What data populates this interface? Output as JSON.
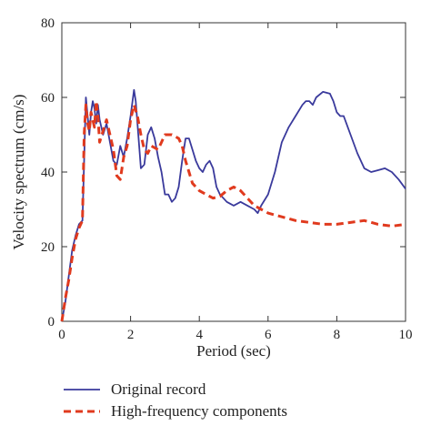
{
  "chart_data": {
    "type": "line",
    "title": "",
    "xlabel": "Period (sec)",
    "ylabel": "Velocity spectrum (cm/s)",
    "xlim": [
      0,
      10
    ],
    "ylim": [
      0,
      80
    ],
    "x_ticks": [
      0,
      2,
      4,
      6,
      8,
      10
    ],
    "y_ticks": [
      0,
      20,
      40,
      60,
      80
    ],
    "grid": false,
    "legend_position": "bottom-left-outside",
    "series": [
      {
        "name": "Original record",
        "color": "#3a3a9c",
        "style": "solid",
        "points": [
          [
            0,
            0
          ],
          [
            0.1,
            5
          ],
          [
            0.2,
            12
          ],
          [
            0.3,
            19
          ],
          [
            0.4,
            23
          ],
          [
            0.5,
            26
          ],
          [
            0.6,
            27
          ],
          [
            0.7,
            60
          ],
          [
            0.75,
            55
          ],
          [
            0.8,
            50
          ],
          [
            0.85,
            56
          ],
          [
            0.9,
            59
          ],
          [
            0.95,
            57
          ],
          [
            1.0,
            53
          ],
          [
            1.05,
            58
          ],
          [
            1.1,
            54
          ],
          [
            1.15,
            52
          ],
          [
            1.2,
            50
          ],
          [
            1.3,
            53
          ],
          [
            1.4,
            48
          ],
          [
            1.5,
            43
          ],
          [
            1.6,
            42
          ],
          [
            1.7,
            47
          ],
          [
            1.8,
            44
          ],
          [
            1.9,
            49
          ],
          [
            2.0,
            55
          ],
          [
            2.1,
            62
          ],
          [
            2.15,
            59
          ],
          [
            2.2,
            53
          ],
          [
            2.3,
            41
          ],
          [
            2.4,
            42
          ],
          [
            2.5,
            50
          ],
          [
            2.6,
            52
          ],
          [
            2.7,
            49
          ],
          [
            2.8,
            44
          ],
          [
            2.9,
            40
          ],
          [
            3.0,
            34
          ],
          [
            3.1,
            34
          ],
          [
            3.2,
            32
          ],
          [
            3.3,
            33
          ],
          [
            3.4,
            36
          ],
          [
            3.5,
            43
          ],
          [
            3.6,
            49
          ],
          [
            3.7,
            49
          ],
          [
            3.8,
            46
          ],
          [
            3.9,
            43
          ],
          [
            4.0,
            41
          ],
          [
            4.1,
            40
          ],
          [
            4.2,
            42
          ],
          [
            4.3,
            43
          ],
          [
            4.4,
            41
          ],
          [
            4.5,
            36
          ],
          [
            4.6,
            34
          ],
          [
            4.7,
            33
          ],
          [
            4.8,
            32
          ],
          [
            5.0,
            31
          ],
          [
            5.2,
            32
          ],
          [
            5.4,
            31
          ],
          [
            5.6,
            30
          ],
          [
            5.7,
            29
          ],
          [
            5.8,
            31
          ],
          [
            6.0,
            34
          ],
          [
            6.2,
            40
          ],
          [
            6.4,
            48
          ],
          [
            6.6,
            52
          ],
          [
            6.8,
            55
          ],
          [
            7.0,
            58
          ],
          [
            7.1,
            59
          ],
          [
            7.2,
            59
          ],
          [
            7.3,
            58
          ],
          [
            7.4,
            60
          ],
          [
            7.6,
            61.5
          ],
          [
            7.8,
            61
          ],
          [
            7.9,
            59
          ],
          [
            8.0,
            56
          ],
          [
            8.1,
            55
          ],
          [
            8.2,
            55
          ],
          [
            8.4,
            50
          ],
          [
            8.6,
            45
          ],
          [
            8.8,
            41
          ],
          [
            9.0,
            40
          ],
          [
            9.2,
            40.5
          ],
          [
            9.4,
            41
          ],
          [
            9.6,
            40
          ],
          [
            9.8,
            38
          ],
          [
            10.0,
            35.5
          ]
        ]
      },
      {
        "name": "High-frequency components",
        "color": "#e03a1e",
        "style": "dashed",
        "points": [
          [
            0,
            0
          ],
          [
            0.1,
            6
          ],
          [
            0.2,
            11
          ],
          [
            0.3,
            17
          ],
          [
            0.4,
            22
          ],
          [
            0.5,
            25
          ],
          [
            0.6,
            27
          ],
          [
            0.65,
            50
          ],
          [
            0.7,
            58
          ],
          [
            0.75,
            53
          ],
          [
            0.8,
            51
          ],
          [
            0.85,
            56
          ],
          [
            0.9,
            54
          ],
          [
            0.95,
            52
          ],
          [
            1.0,
            59
          ],
          [
            1.05,
            55
          ],
          [
            1.1,
            48
          ],
          [
            1.2,
            51
          ],
          [
            1.3,
            54
          ],
          [
            1.4,
            50
          ],
          [
            1.5,
            46
          ],
          [
            1.6,
            39
          ],
          [
            1.7,
            38
          ],
          [
            1.8,
            44
          ],
          [
            1.9,
            47
          ],
          [
            2.0,
            54
          ],
          [
            2.1,
            58
          ],
          [
            2.2,
            55
          ],
          [
            2.3,
            50
          ],
          [
            2.4,
            46
          ],
          [
            2.5,
            45
          ],
          [
            2.6,
            47
          ],
          [
            2.8,
            46
          ],
          [
            2.9,
            48
          ],
          [
            3.0,
            50
          ],
          [
            3.2,
            50
          ],
          [
            3.4,
            49
          ],
          [
            3.5,
            47
          ],
          [
            3.6,
            43
          ],
          [
            3.7,
            40
          ],
          [
            3.8,
            37
          ],
          [
            4.0,
            35
          ],
          [
            4.2,
            34
          ],
          [
            4.4,
            33
          ],
          [
            4.6,
            33.5
          ],
          [
            4.8,
            35
          ],
          [
            5.0,
            36
          ],
          [
            5.2,
            35
          ],
          [
            5.4,
            33
          ],
          [
            5.6,
            31
          ],
          [
            5.8,
            30
          ],
          [
            6.0,
            29
          ],
          [
            6.4,
            28
          ],
          [
            6.8,
            27
          ],
          [
            7.2,
            26.5
          ],
          [
            7.6,
            26
          ],
          [
            8.0,
            26
          ],
          [
            8.4,
            26.5
          ],
          [
            8.8,
            27
          ],
          [
            9.2,
            26
          ],
          [
            9.6,
            25.5
          ],
          [
            10.0,
            26
          ]
        ]
      }
    ]
  }
}
